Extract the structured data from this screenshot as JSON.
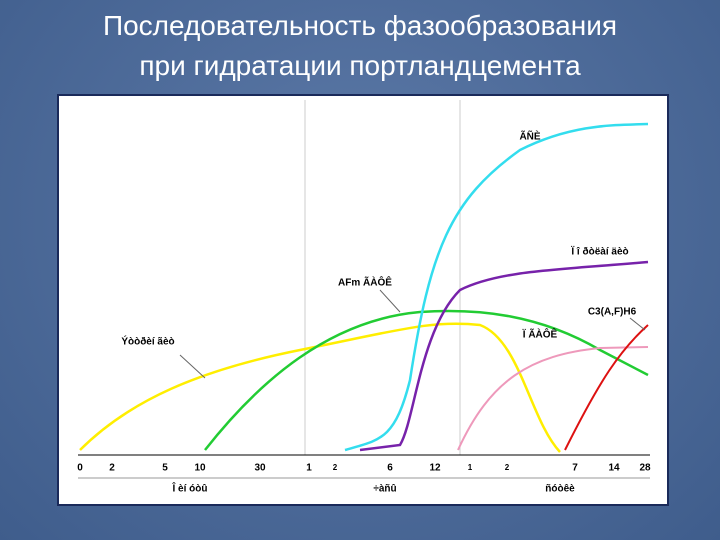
{
  "title_lines": [
    "Последовательность фазообразования",
    "при гидратации портландцемента"
  ],
  "axis_ticks": [
    "0",
    "2",
    "5",
    "10",
    "30",
    "1",
    "2",
    "6",
    "12",
    "1",
    "2",
    "7",
    "14",
    "28"
  ],
  "axis_units": [
    "Î èí óòû",
    "÷àñû",
    "ñóòêè"
  ],
  "curve_labels": [
    "ÃÑÈ",
    "Ï î ðòëàí äèò",
    "AFm ÃÀÔÊ",
    "C3(A,F)H6",
    "Ï ÃÀÔÊ",
    "Ýòòðèí ãèò"
  ]
}
